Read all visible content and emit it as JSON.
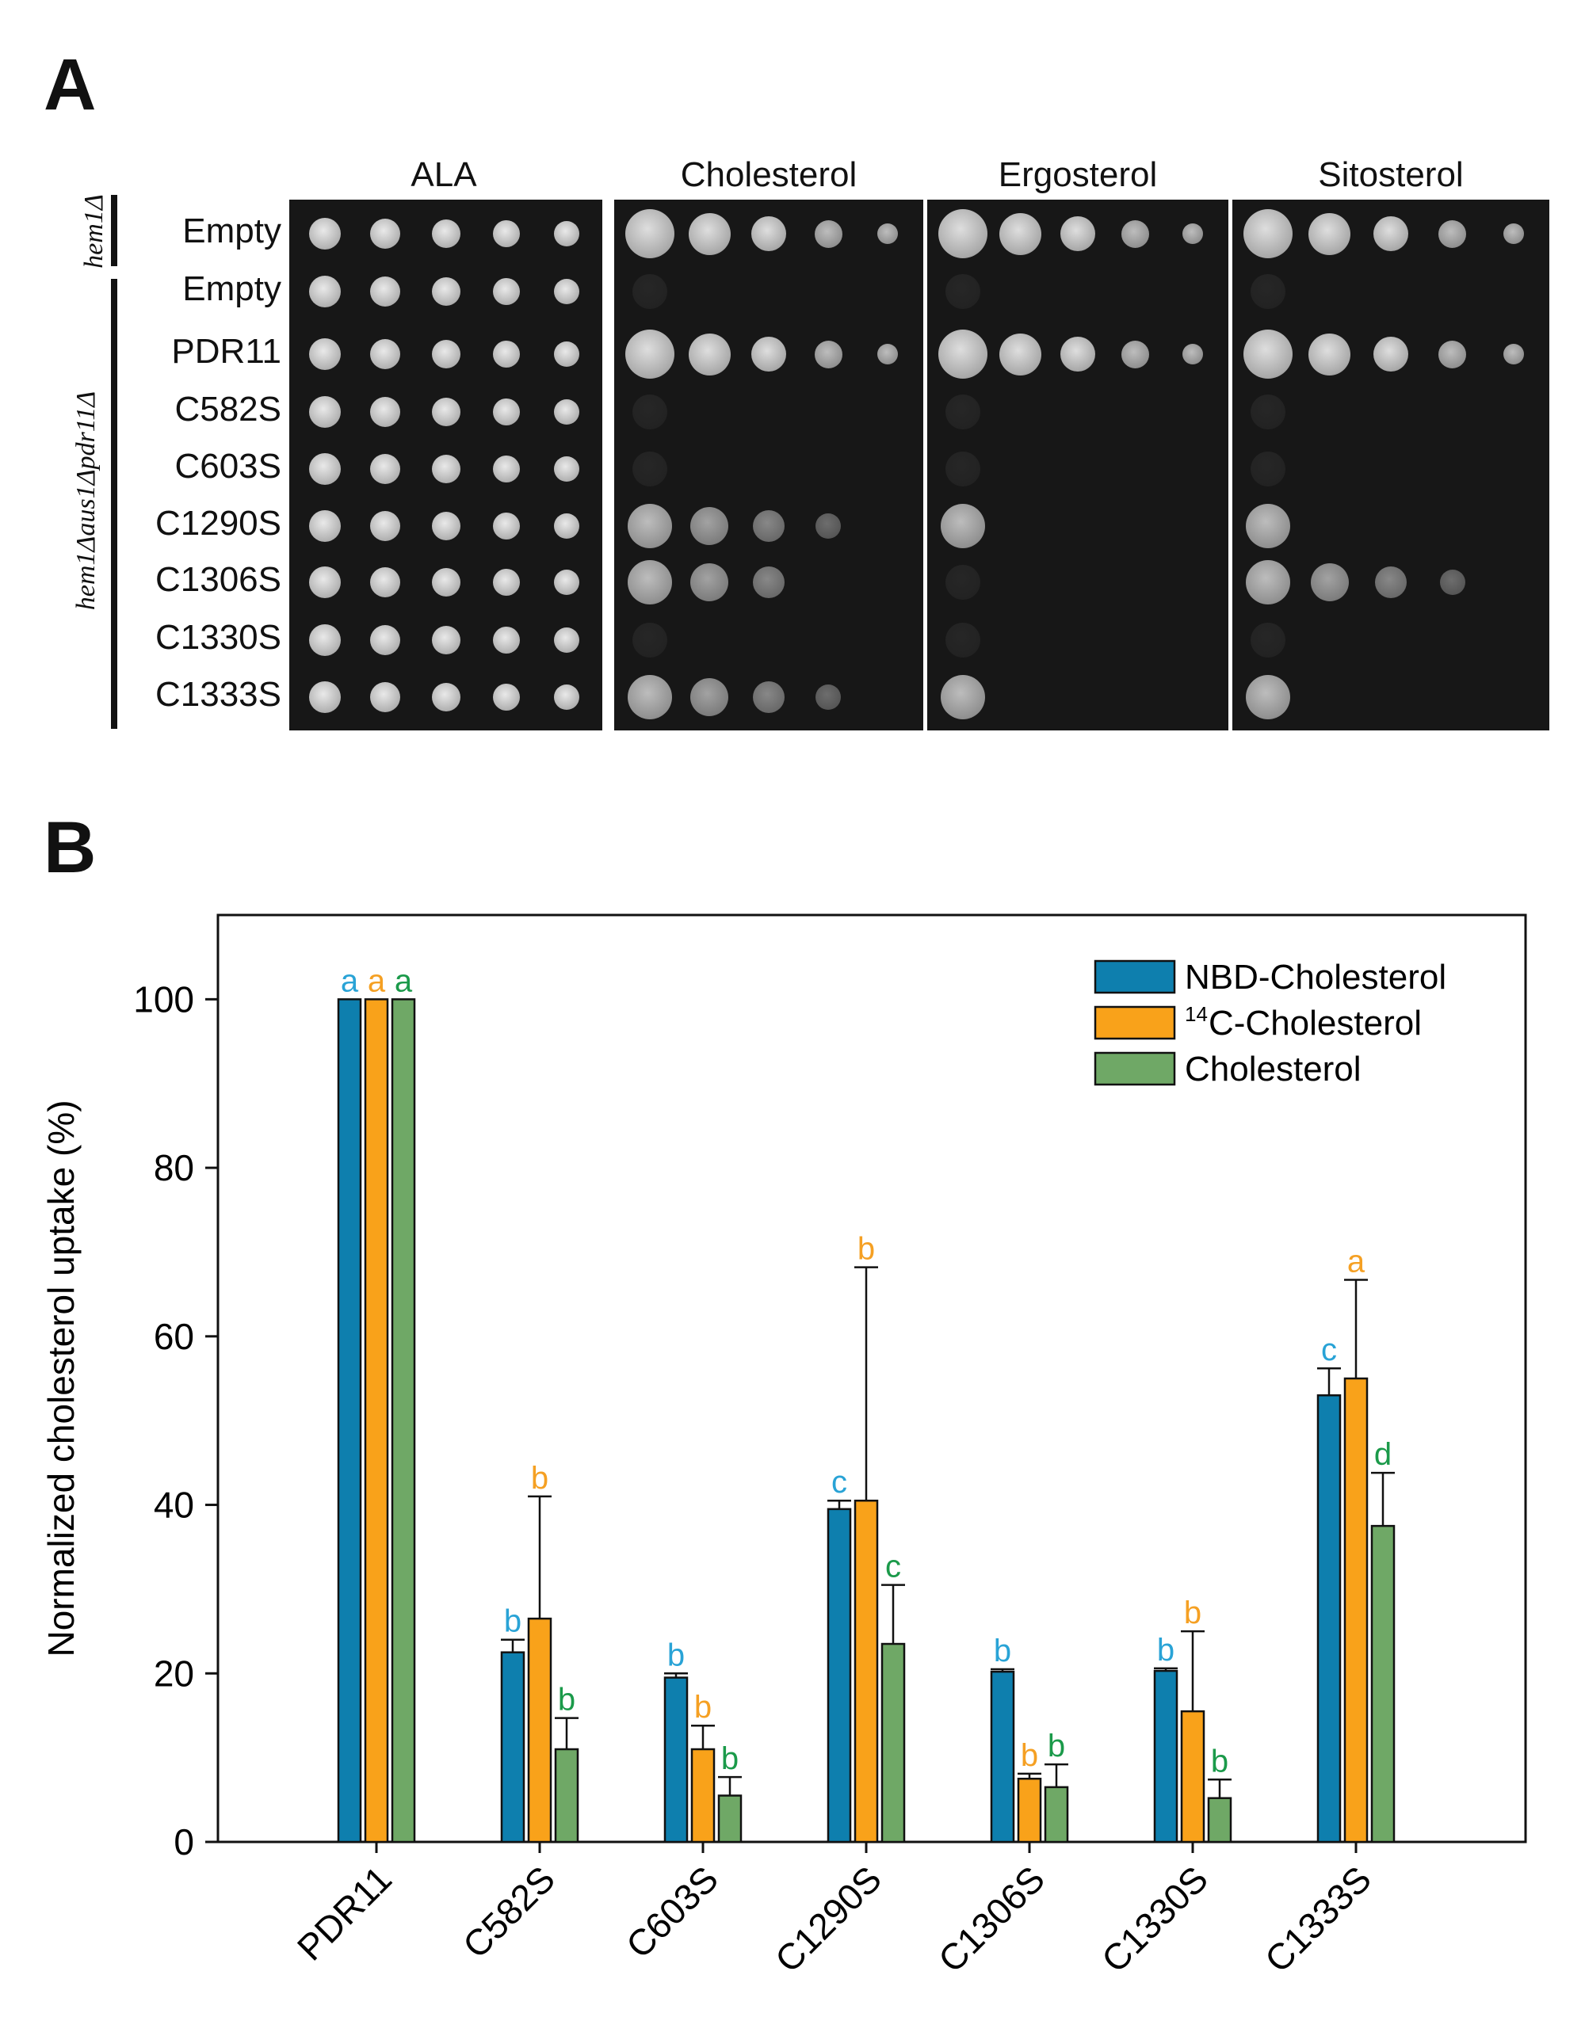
{
  "panel_a": {
    "letter": "A",
    "conditions": [
      "ALA",
      "Cholesterol",
      "Ergosterol",
      "Sitosterol"
    ],
    "genotype_top": "hem1Δ",
    "genotype_bottom": "hem1Δaus1Δpdr11Δ",
    "strains": [
      "Empty",
      "Empty",
      "PDR11",
      "C582S",
      "C603S",
      "C1290S",
      "C1306S",
      "C1330S",
      "C1333S"
    ],
    "growth": [
      [
        5,
        5,
        5,
        5
      ],
      [
        5,
        0,
        0,
        0
      ],
      [
        5,
        5,
        5,
        5
      ],
      [
        5,
        0,
        0,
        0
      ],
      [
        5,
        0,
        0,
        0
      ],
      [
        5,
        4,
        1,
        1
      ],
      [
        5,
        3,
        0,
        4
      ],
      [
        5,
        0,
        0,
        0
      ],
      [
        5,
        4,
        1,
        1
      ]
    ]
  },
  "panel_b": {
    "letter": "B"
  },
  "chart_data": {
    "type": "bar",
    "title": "",
    "xlabel": "",
    "ylabel": "Normalized cholesterol uptake (%)",
    "ylim": [
      0,
      110
    ],
    "yticks": [
      "0",
      "20",
      "40",
      "60",
      "80",
      "100"
    ],
    "categories": [
      "PDR11",
      "C582S",
      "C603S",
      "C1290S",
      "C1306S",
      "C1330S",
      "C1333S"
    ],
    "series": [
      {
        "name": "NBD-Cholesterol",
        "color": "#0e7fae",
        "values": [
          100,
          22.5,
          19.5,
          39.5,
          20.2,
          20.3,
          53
        ],
        "errors": [
          0,
          1.5,
          0.5,
          1.0,
          0.3,
          0.3,
          3.2
        ],
        "letters": [
          "a",
          "b",
          "b",
          "c",
          "b",
          "b",
          "c"
        ],
        "letter_color": "#29a3d6"
      },
      {
        "name": "14C-Cholesterol",
        "legend_sup": "14",
        "legend_rest": "C-Cholesterol",
        "color": "#f9a21a",
        "values": [
          100,
          26.5,
          11,
          40.5,
          7.5,
          15.5,
          55
        ],
        "errors": [
          0,
          14.5,
          2.8,
          27.7,
          0.6,
          9.5,
          11.7
        ],
        "letters": [
          "a",
          "b",
          "b",
          "b",
          "b",
          "b",
          "a"
        ],
        "letter_color": "#f5a023"
      },
      {
        "name": "Cholesterol",
        "color": "#6fa866",
        "values": [
          100,
          11,
          5.5,
          23.5,
          6.5,
          5.2,
          37.5
        ],
        "errors": [
          0,
          3.7,
          2.2,
          7.0,
          2.7,
          2.2,
          6.3
        ],
        "letters": [
          "a",
          "b",
          "b",
          "c",
          "b",
          "b",
          "d"
        ],
        "letter_color": "#1b9a4a"
      }
    ],
    "legend_position": "top-right"
  }
}
